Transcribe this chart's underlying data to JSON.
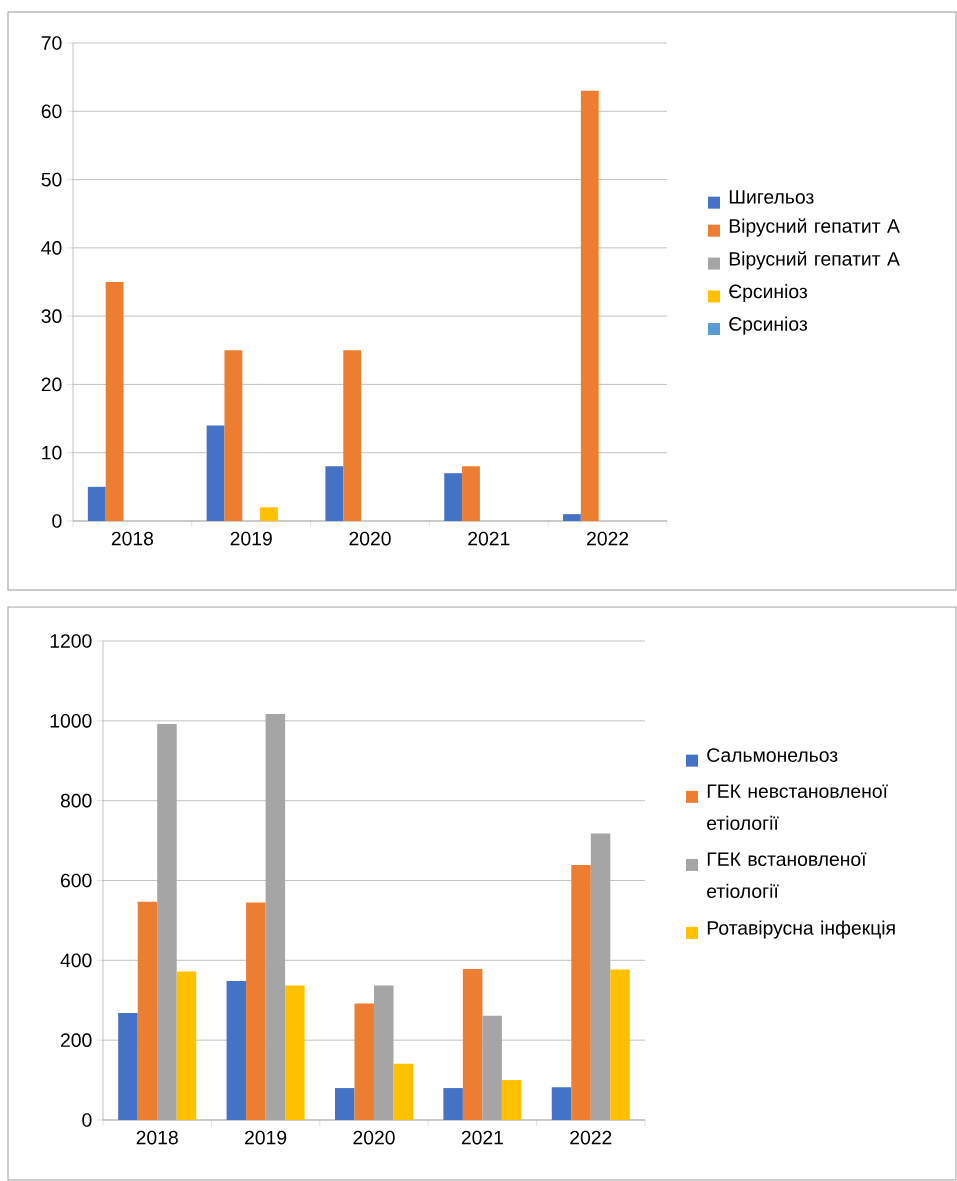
{
  "chart_data": [
    {
      "type": "bar",
      "categories": [
        "2018",
        "2019",
        "2020",
        "2021",
        "2022"
      ],
      "ylim": [
        0,
        70
      ],
      "yticks": [
        0,
        10,
        20,
        30,
        40,
        50,
        60,
        70
      ],
      "grid": "y",
      "legend": "right",
      "series": [
        {
          "name": "Шигельоз",
          "color": "#4472c4",
          "values": [
            5,
            14,
            8,
            7,
            1
          ]
        },
        {
          "name": "Вірусний гепатит А",
          "color": "#ed7d31",
          "values": [
            35,
            25,
            25,
            8,
            63
          ]
        },
        {
          "name": "Вірусний гепатит А",
          "color": "#a5a5a5",
          "values": [
            0,
            0,
            0,
            0,
            0
          ]
        },
        {
          "name": "Єрсиніоз",
          "color": "#ffc000",
          "values": [
            0,
            2,
            0,
            0,
            0
          ]
        },
        {
          "name": "Єрсиніоз",
          "color": "#5b9bd5",
          "values": [
            0,
            0,
            0,
            0,
            0
          ]
        }
      ]
    },
    {
      "type": "bar",
      "categories": [
        "2018",
        "2019",
        "2020",
        "2021",
        "2022"
      ],
      "ylim": [
        0,
        1200
      ],
      "yticks": [
        0,
        200,
        400,
        600,
        800,
        1000,
        1200
      ],
      "grid": "y",
      "legend": "right",
      "series": [
        {
          "name": "Сальмонельоз",
          "color": "#4472c4",
          "values": [
            268,
            348,
            80,
            80,
            82
          ]
        },
        {
          "name": "ГЕК невстановленої етіології",
          "color": "#ed7d31",
          "values": [
            547,
            545,
            292,
            378,
            639
          ]
        },
        {
          "name": "ГЕК встановленої етіології",
          "color": "#a5a5a5",
          "values": [
            992,
            1017,
            337,
            261,
            718
          ]
        },
        {
          "name": "Ротавірусна інфекція",
          "color": "#ffc000",
          "values": [
            372,
            337,
            141,
            100,
            377
          ]
        }
      ]
    }
  ]
}
